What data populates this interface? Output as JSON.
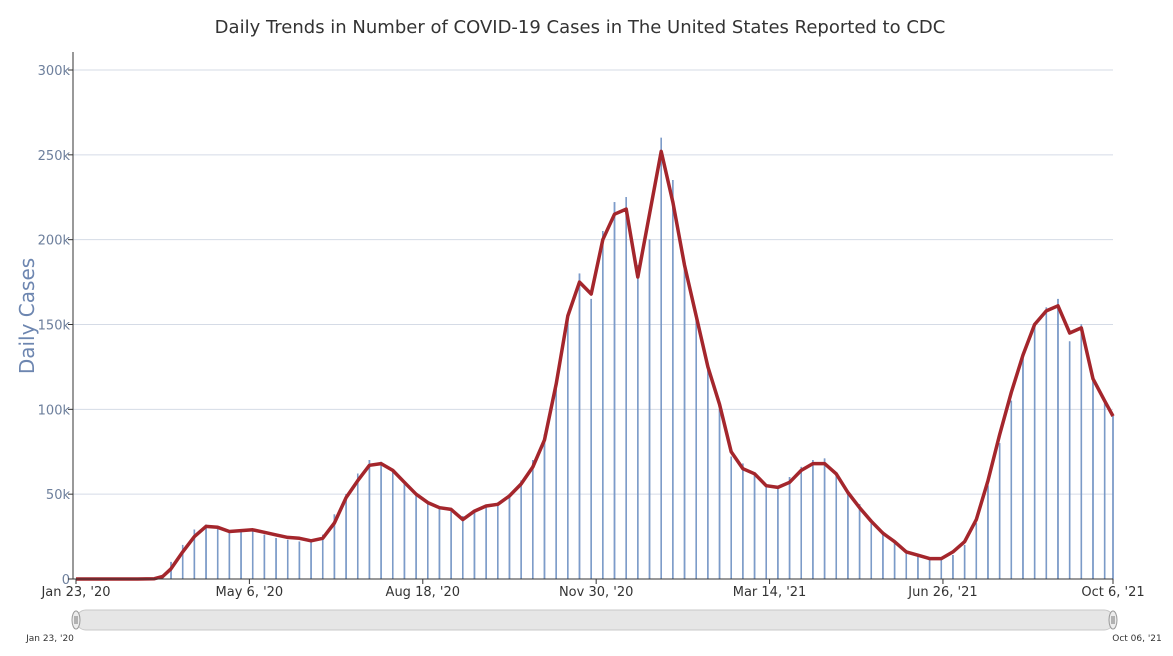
{
  "chart_data": {
    "type": "bar",
    "title": "Daily Trends in Number of COVID-19 Cases in The United States Reported to CDC",
    "xlabel": "",
    "ylabel": "Daily Cases",
    "y_ticks": [
      "0",
      "50k",
      "100k",
      "150k",
      "200k",
      "250k",
      "300k"
    ],
    "y_tick_values": [
      0,
      50000,
      100000,
      150000,
      200000,
      250000,
      300000
    ],
    "ylim": [
      0,
      300000
    ],
    "x_ticks": [
      "Jan 23, '20",
      "May 6, '20",
      "Aug 18, '20",
      "Nov 30, '20",
      "Mar 14, '21",
      "Jun 26, '21",
      "Oct 6, '21"
    ],
    "x_tick_dates": [
      "2020-01-23",
      "2020-05-06",
      "2020-08-18",
      "2020-11-30",
      "2021-03-14",
      "2021-06-26",
      "2021-10-06"
    ],
    "x_range": [
      "2020-01-23",
      "2021-10-06"
    ],
    "grid": true,
    "colors": {
      "bars": "#7f9fcc",
      "bar_edge": "#5b7fb6",
      "average_line": "#a4262c",
      "grid": "#d5dbe6"
    },
    "series": [
      {
        "kind": "bar",
        "points": [
          [
            "2020-01-23",
            0
          ],
          [
            "2020-02-29",
            0
          ],
          [
            "2020-03-10",
            300
          ],
          [
            "2020-03-15",
            2500
          ],
          [
            "2020-03-20",
            10000
          ],
          [
            "2020-03-27",
            20000
          ],
          [
            "2020-04-03",
            29000
          ],
          [
            "2020-04-10",
            32000
          ],
          [
            "2020-04-17",
            30000
          ],
          [
            "2020-04-24",
            28000
          ],
          [
            "2020-05-01",
            29000
          ],
          [
            "2020-05-08",
            28000
          ],
          [
            "2020-05-15",
            26000
          ],
          [
            "2020-05-22",
            24000
          ],
          [
            "2020-05-29",
            23000
          ],
          [
            "2020-06-05",
            22000
          ],
          [
            "2020-06-12",
            22000
          ],
          [
            "2020-06-19",
            26000
          ],
          [
            "2020-06-26",
            38000
          ],
          [
            "2020-07-03",
            50000
          ],
          [
            "2020-07-10",
            62000
          ],
          [
            "2020-07-17",
            70000
          ],
          [
            "2020-07-24",
            69000
          ],
          [
            "2020-07-31",
            64000
          ],
          [
            "2020-08-07",
            57000
          ],
          [
            "2020-08-14",
            50000
          ],
          [
            "2020-08-21",
            45000
          ],
          [
            "2020-08-28",
            42000
          ],
          [
            "2020-09-04",
            41000
          ],
          [
            "2020-09-11",
            37000
          ],
          [
            "2020-09-18",
            40000
          ],
          [
            "2020-09-25",
            43000
          ],
          [
            "2020-10-02",
            45000
          ],
          [
            "2020-10-09",
            50000
          ],
          [
            "2020-10-16",
            58000
          ],
          [
            "2020-10-23",
            70000
          ],
          [
            "2020-10-30",
            85000
          ],
          [
            "2020-11-06",
            115000
          ],
          [
            "2020-11-13",
            155000
          ],
          [
            "2020-11-20",
            180000
          ],
          [
            "2020-11-27",
            165000
          ],
          [
            "2020-12-04",
            205000
          ],
          [
            "2020-12-11",
            222000
          ],
          [
            "2020-12-18",
            225000
          ],
          [
            "2020-12-25",
            185000
          ],
          [
            "2021-01-01",
            200000
          ],
          [
            "2021-01-08",
            260000
          ],
          [
            "2021-01-15",
            235000
          ],
          [
            "2021-01-22",
            185000
          ],
          [
            "2021-01-29",
            155000
          ],
          [
            "2021-02-05",
            125000
          ],
          [
            "2021-02-12",
            100000
          ],
          [
            "2021-02-19",
            72000
          ],
          [
            "2021-02-26",
            68000
          ],
          [
            "2021-03-05",
            62000
          ],
          [
            "2021-03-12",
            55000
          ],
          [
            "2021-03-19",
            55000
          ],
          [
            "2021-03-26",
            60000
          ],
          [
            "2021-04-02",
            66000
          ],
          [
            "2021-04-09",
            70000
          ],
          [
            "2021-04-16",
            71000
          ],
          [
            "2021-04-23",
            62000
          ],
          [
            "2021-04-30",
            52000
          ],
          [
            "2021-05-07",
            44000
          ],
          [
            "2021-05-14",
            35000
          ],
          [
            "2021-05-21",
            28000
          ],
          [
            "2021-05-28",
            22000
          ],
          [
            "2021-06-04",
            17000
          ],
          [
            "2021-06-11",
            14000
          ],
          [
            "2021-06-18",
            12000
          ],
          [
            "2021-06-25",
            12500
          ],
          [
            "2021-07-02",
            14000
          ],
          [
            "2021-07-09",
            20000
          ],
          [
            "2021-07-16",
            33000
          ],
          [
            "2021-07-23",
            55000
          ],
          [
            "2021-07-30",
            80000
          ],
          [
            "2021-08-06",
            105000
          ],
          [
            "2021-08-13",
            130000
          ],
          [
            "2021-08-20",
            150000
          ],
          [
            "2021-08-27",
            160000
          ],
          [
            "2021-09-03",
            165000
          ],
          [
            "2021-09-10",
            140000
          ],
          [
            "2021-09-17",
            150000
          ],
          [
            "2021-09-24",
            120000
          ],
          [
            "2021-10-01",
            105000
          ],
          [
            "2021-10-06",
            96000
          ]
        ]
      },
      {
        "kind": "line",
        "points": [
          [
            "2020-01-23",
            0
          ],
          [
            "2020-02-29",
            0
          ],
          [
            "2020-03-10",
            200
          ],
          [
            "2020-03-15",
            1500
          ],
          [
            "2020-03-20",
            6000
          ],
          [
            "2020-03-27",
            16000
          ],
          [
            "2020-04-03",
            25000
          ],
          [
            "2020-04-10",
            31000
          ],
          [
            "2020-04-17",
            30500
          ],
          [
            "2020-04-24",
            28000
          ],
          [
            "2020-05-01",
            28500
          ],
          [
            "2020-05-08",
            29000
          ],
          [
            "2020-05-15",
            27500
          ],
          [
            "2020-05-22",
            26000
          ],
          [
            "2020-05-29",
            24500
          ],
          [
            "2020-06-05",
            24000
          ],
          [
            "2020-06-12",
            22500
          ],
          [
            "2020-06-19",
            24000
          ],
          [
            "2020-06-26",
            33000
          ],
          [
            "2020-07-03",
            48000
          ],
          [
            "2020-07-10",
            58000
          ],
          [
            "2020-07-17",
            67000
          ],
          [
            "2020-07-24",
            68000
          ],
          [
            "2020-07-31",
            64000
          ],
          [
            "2020-08-07",
            57000
          ],
          [
            "2020-08-14",
            50000
          ],
          [
            "2020-08-21",
            45000
          ],
          [
            "2020-08-28",
            42000
          ],
          [
            "2020-09-04",
            41000
          ],
          [
            "2020-09-11",
            35000
          ],
          [
            "2020-09-18",
            40000
          ],
          [
            "2020-09-25",
            43000
          ],
          [
            "2020-10-02",
            44000
          ],
          [
            "2020-10-09",
            49000
          ],
          [
            "2020-10-16",
            56000
          ],
          [
            "2020-10-23",
            66000
          ],
          [
            "2020-10-30",
            82000
          ],
          [
            "2020-11-06",
            115000
          ],
          [
            "2020-11-13",
            155000
          ],
          [
            "2020-11-20",
            175000
          ],
          [
            "2020-11-27",
            168000
          ],
          [
            "2020-12-04",
            200000
          ],
          [
            "2020-12-11",
            215000
          ],
          [
            "2020-12-18",
            218000
          ],
          [
            "2020-12-25",
            178000
          ],
          [
            "2021-01-01",
            215000
          ],
          [
            "2021-01-08",
            252000
          ],
          [
            "2021-01-15",
            222000
          ],
          [
            "2021-01-22",
            185000
          ],
          [
            "2021-01-29",
            155000
          ],
          [
            "2021-02-05",
            125000
          ],
          [
            "2021-02-12",
            103000
          ],
          [
            "2021-02-19",
            75000
          ],
          [
            "2021-02-26",
            65000
          ],
          [
            "2021-03-05",
            62000
          ],
          [
            "2021-03-12",
            55000
          ],
          [
            "2021-03-19",
            54000
          ],
          [
            "2021-03-26",
            57000
          ],
          [
            "2021-04-02",
            64000
          ],
          [
            "2021-04-09",
            68000
          ],
          [
            "2021-04-16",
            68000
          ],
          [
            "2021-04-23",
            62000
          ],
          [
            "2021-04-30",
            51000
          ],
          [
            "2021-05-07",
            42000
          ],
          [
            "2021-05-14",
            34000
          ],
          [
            "2021-05-21",
            27000
          ],
          [
            "2021-05-28",
            22000
          ],
          [
            "2021-06-04",
            16000
          ],
          [
            "2021-06-11",
            14000
          ],
          [
            "2021-06-18",
            12000
          ],
          [
            "2021-06-25",
            12000
          ],
          [
            "2021-07-02",
            16000
          ],
          [
            "2021-07-09",
            22000
          ],
          [
            "2021-07-16",
            35000
          ],
          [
            "2021-07-23",
            58000
          ],
          [
            "2021-07-30",
            85000
          ],
          [
            "2021-08-06",
            110000
          ],
          [
            "2021-08-13",
            132000
          ],
          [
            "2021-08-20",
            150000
          ],
          [
            "2021-08-27",
            158000
          ],
          [
            "2021-09-03",
            161000
          ],
          [
            "2021-09-10",
            145000
          ],
          [
            "2021-09-17",
            148000
          ],
          [
            "2021-09-24",
            118000
          ],
          [
            "2021-10-01",
            105000
          ],
          [
            "2021-10-06",
            96000
          ]
        ]
      }
    ],
    "navigator": {
      "start_label": "Jan 23, '20",
      "end_label": "Oct 06, '21"
    }
  }
}
